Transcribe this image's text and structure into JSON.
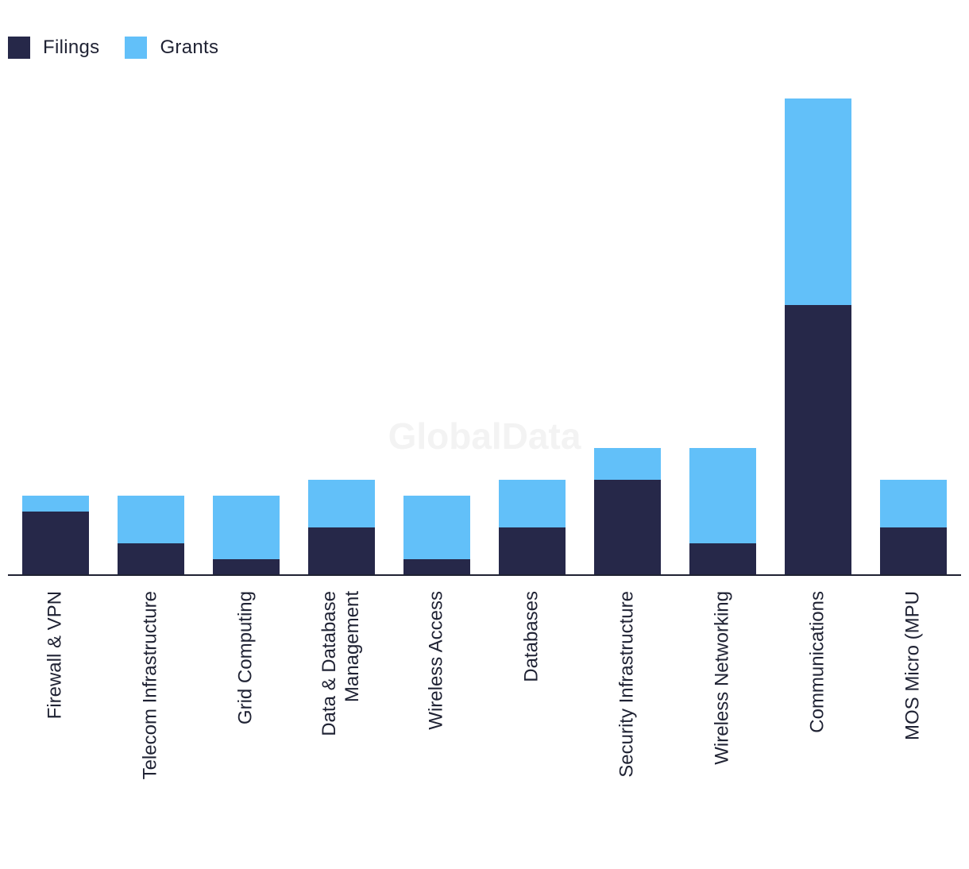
{
  "colors": {
    "filings": "#262849",
    "grants": "#62c0f9",
    "axis": "#1f2233",
    "text": "#1f2233"
  },
  "legend": {
    "filings_label": "Filings",
    "grants_label": "Grants"
  },
  "watermark": "GlobalData",
  "chart_data": {
    "type": "bar",
    "stacked": true,
    "categories": [
      [
        "Firewall & VPN"
      ],
      [
        "Telecom Infrastructure"
      ],
      [
        "Grid Computing"
      ],
      [
        "Data & Database",
        "Management"
      ],
      [
        "Wireless Access"
      ],
      [
        "Databases"
      ],
      [
        "Security Infrastructure"
      ],
      [
        "Wireless Networking"
      ],
      [
        "Communications"
      ],
      [
        "MOS Micro (MPU"
      ]
    ],
    "series": [
      {
        "name": "Filings",
        "values": [
          4,
          2,
          1,
          3,
          1,
          3,
          6,
          2,
          17,
          3
        ]
      },
      {
        "name": "Grants",
        "values": [
          1,
          3,
          4,
          3,
          4,
          3,
          2,
          6,
          13,
          3
        ]
      }
    ],
    "ylim": [
      0,
      30
    ],
    "legend_position": "top-left",
    "grid": false
  }
}
